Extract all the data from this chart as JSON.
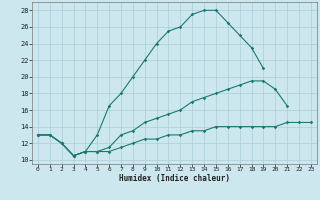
{
  "xlabel": "Humidex (Indice chaleur)",
  "background_color": "#cce8ee",
  "grid_color": "#aacdd6",
  "line_color": "#1a7a6e",
  "xlim": [
    -0.5,
    23.5
  ],
  "ylim": [
    9.5,
    29.0
  ],
  "xticks": [
    0,
    1,
    2,
    3,
    4,
    5,
    6,
    7,
    8,
    9,
    10,
    11,
    12,
    13,
    14,
    15,
    16,
    17,
    18,
    19,
    20,
    21,
    22,
    23
  ],
  "yticks": [
    10,
    12,
    14,
    16,
    18,
    20,
    22,
    24,
    26,
    28
  ],
  "line1_x": [
    0,
    1,
    2,
    3,
    4,
    5,
    6,
    7,
    8,
    9,
    10,
    11,
    12,
    13,
    14,
    15,
    16,
    17,
    18,
    19
  ],
  "line1_y": [
    13,
    13,
    12,
    10.5,
    11,
    13,
    16.5,
    18,
    20,
    22,
    24,
    25.5,
    26,
    27.5,
    28,
    28,
    26.5,
    25,
    23.5,
    21
  ],
  "line2_x": [
    0,
    1,
    2,
    3,
    4,
    5,
    6,
    7,
    8,
    9,
    10,
    11,
    12,
    13,
    14,
    15,
    16,
    17,
    18,
    19,
    20,
    21
  ],
  "line2_y": [
    13,
    13,
    12,
    10.5,
    11,
    11,
    11.5,
    13,
    13.5,
    14.5,
    15,
    15.5,
    16,
    17,
    17.5,
    18,
    18.5,
    19,
    19.5,
    19.5,
    18.5,
    16.5
  ],
  "line3_x": [
    0,
    1,
    2,
    3,
    4,
    5,
    6,
    7,
    8,
    9,
    10,
    11,
    12,
    13,
    14,
    15,
    16,
    17,
    18,
    19,
    20,
    21,
    22,
    23
  ],
  "line3_y": [
    13,
    13,
    12,
    10.5,
    11,
    11,
    11,
    11.5,
    12,
    12.5,
    12.5,
    13,
    13,
    13.5,
    13.5,
    14,
    14,
    14,
    14,
    14,
    14,
    14.5,
    14.5,
    14.5
  ]
}
